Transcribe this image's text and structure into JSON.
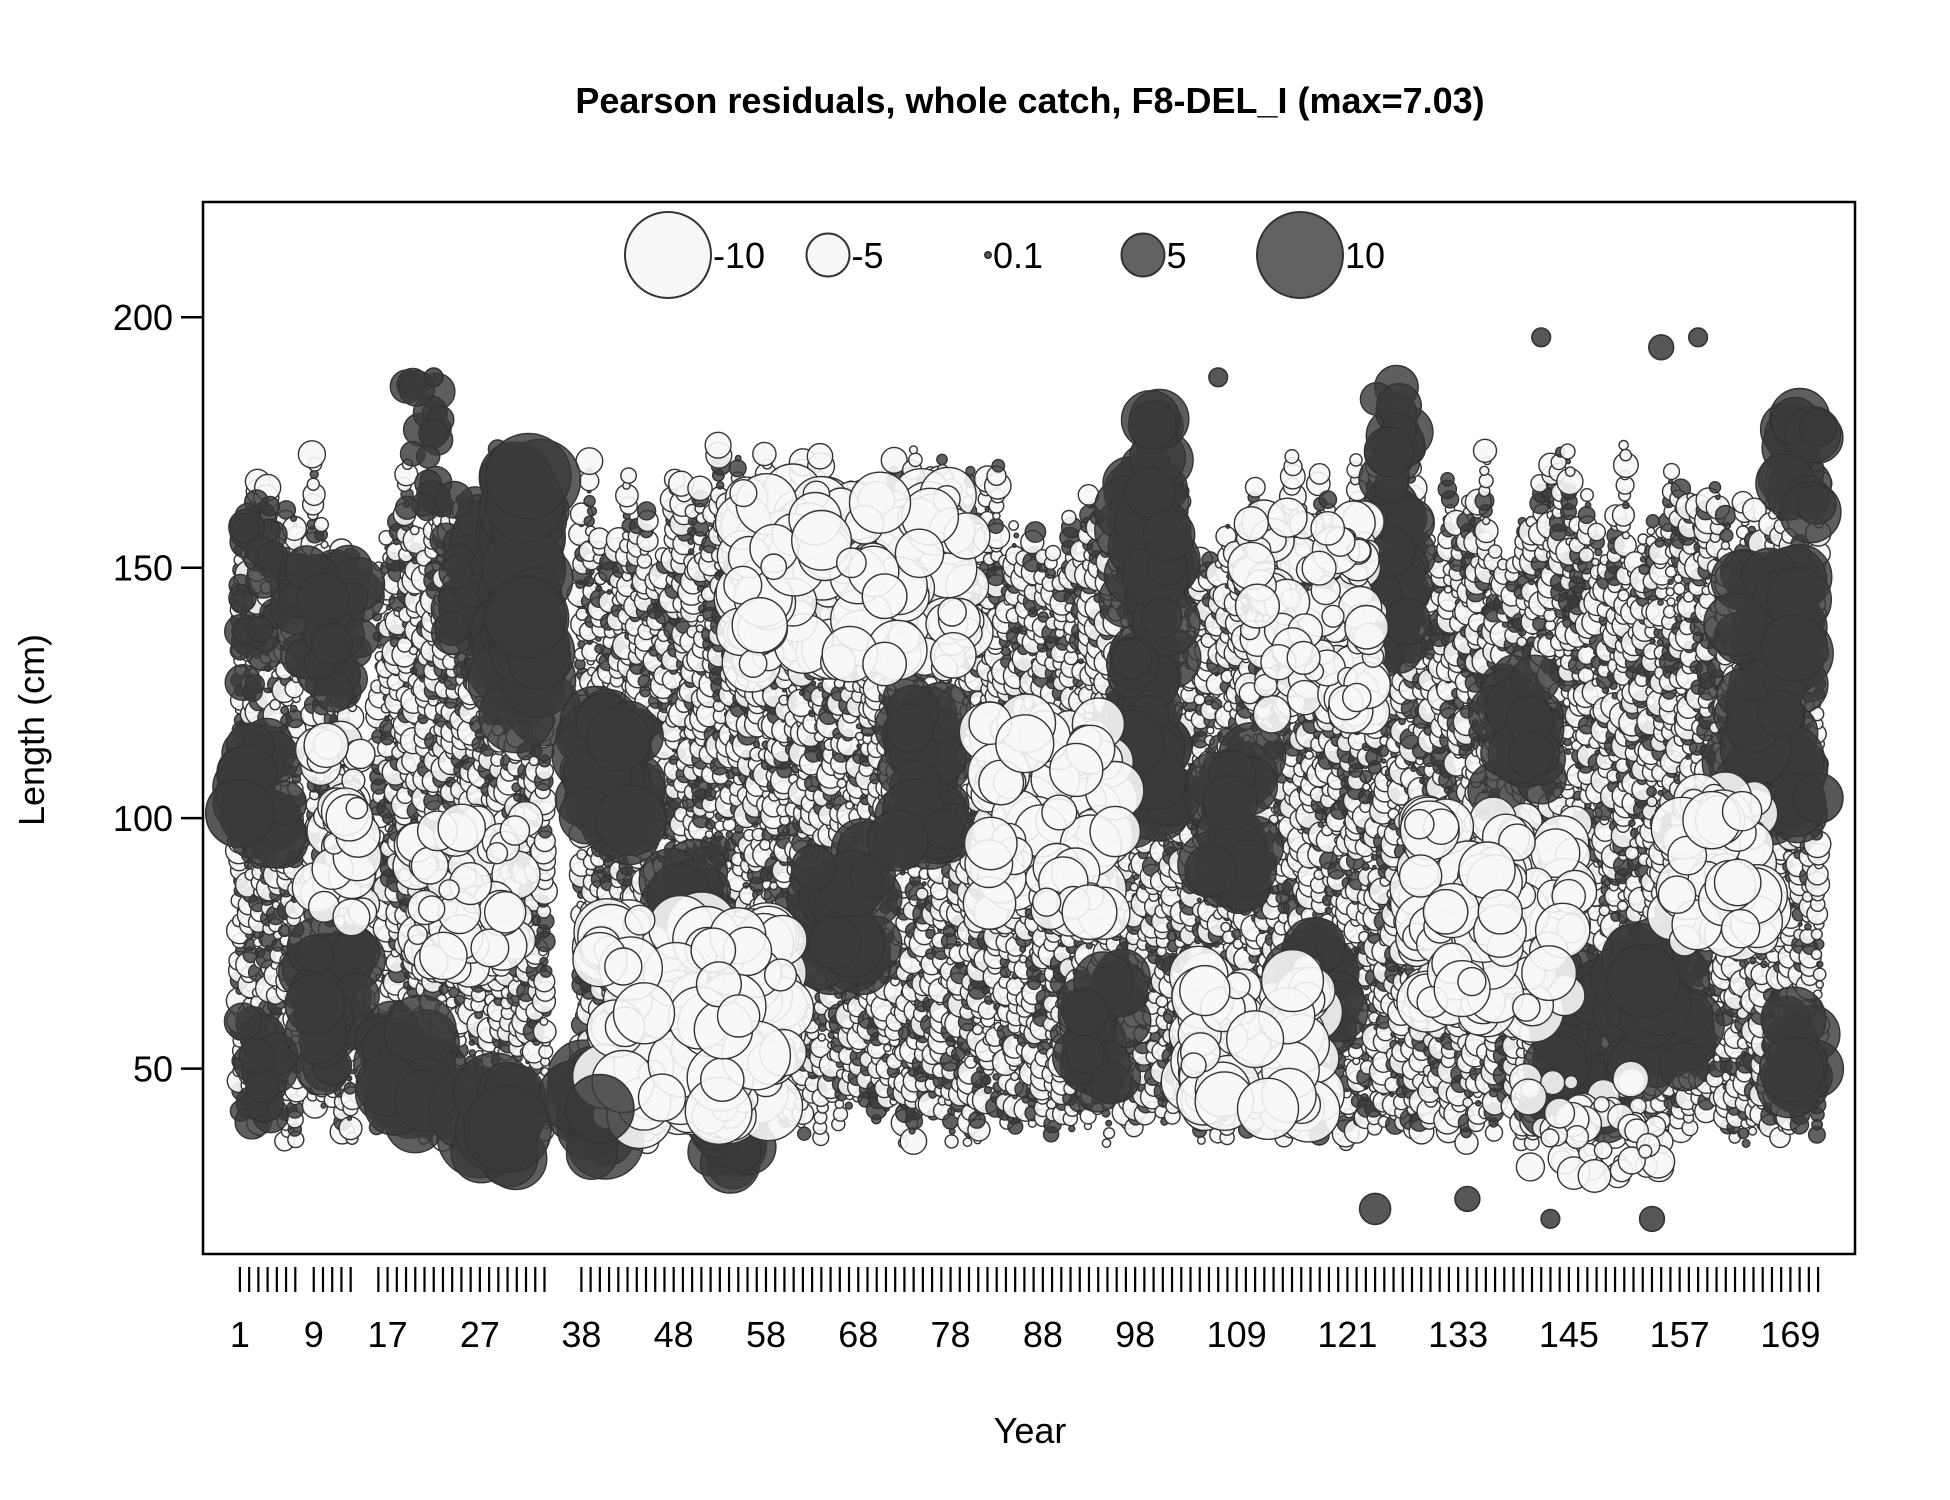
{
  "chart_data": {
    "type": "scatter",
    "title": "Pearson residuals, whole catch, F8-DEL_I (max=7.03)",
    "xlabel": "Year",
    "ylabel": "Length (cm)",
    "xlim": [
      -3,
      176
    ],
    "ylim": [
      13,
      223
    ],
    "x_tick_labels": [
      "1",
      "9",
      "17",
      "27",
      "38",
      "48",
      "58",
      "68",
      "78",
      "88",
      "98",
      "109",
      "121",
      "133",
      "145",
      "157",
      "169"
    ],
    "y_ticks": [
      50,
      100,
      150,
      200
    ],
    "y_tick_labels": [
      "50",
      "100",
      "150",
      "200"
    ],
    "year_groups": [
      [
        1,
        7
      ],
      [
        9,
        13
      ],
      [
        16,
        34
      ],
      [
        38,
        172
      ]
    ],
    "legend": {
      "placement": "top-center",
      "values": [
        -10,
        -5,
        0.1,
        5,
        10
      ],
      "labels": [
        "-10",
        "-5",
        "0.1",
        "5",
        "10"
      ]
    },
    "colors": {
      "positive": "#3a3a3a",
      "negative": "#f7f7f7",
      "outline": "#333333"
    },
    "bubble_groups": [
      {
        "x": [
          1,
          6
        ],
        "y": [
          95,
          115
        ],
        "r": [
          3.5,
          5.5
        ],
        "sign": "positive"
      },
      {
        "x": [
          1,
          5
        ],
        "y": [
          38,
          60
        ],
        "r": [
          2.5,
          4
        ],
        "sign": "positive"
      },
      {
        "x": [
          1,
          5
        ],
        "y": [
          125,
          165
        ],
        "r": [
          1.5,
          3
        ],
        "sign": "positive"
      },
      {
        "x": [
          8,
          14
        ],
        "y": [
          50,
          75
        ],
        "r": [
          3,
          5
        ],
        "sign": "positive"
      },
      {
        "x": [
          7,
          14
        ],
        "y": [
          125,
          150
        ],
        "r": [
          2.5,
          4.5
        ],
        "sign": "positive"
      },
      {
        "x": [
          16,
          22
        ],
        "y": [
          38,
          60
        ],
        "r": [
          3.5,
          6
        ],
        "sign": "positive"
      },
      {
        "x": [
          19,
          23
        ],
        "y": [
          160,
          188
        ],
        "r": [
          1.5,
          3
        ],
        "sign": "positive"
      },
      {
        "x": [
          23,
          28
        ],
        "y": [
          135,
          165
        ],
        "r": [
          2.5,
          4
        ],
        "sign": "positive"
      },
      {
        "x": [
          26,
          31
        ],
        "y": [
          32,
          48
        ],
        "r": [
          4,
          7
        ],
        "sign": "positive"
      },
      {
        "x": [
          30,
          34
        ],
        "y": [
          120,
          170
        ],
        "r": [
          4,
          7
        ],
        "sign": "positive"
      },
      {
        "x": [
          38,
          44
        ],
        "y": [
          95,
          120
        ],
        "r": [
          4,
          6
        ],
        "sign": "positive"
      },
      {
        "x": [
          37,
          41
        ],
        "y": [
          32,
          50
        ],
        "r": [
          4,
          6.5
        ],
        "sign": "positive"
      },
      {
        "x": [
          47,
          53
        ],
        "y": [
          65,
          90
        ],
        "r": [
          3.5,
          5.5
        ],
        "sign": "positive"
      },
      {
        "x": [
          52,
          57
        ],
        "y": [
          30,
          50
        ],
        "r": [
          3,
          5
        ],
        "sign": "positive"
      },
      {
        "x": [
          63,
          70
        ],
        "y": [
          70,
          95
        ],
        "r": [
          3.5,
          5.5
        ],
        "sign": "positive"
      },
      {
        "x": [
          72,
          78
        ],
        "y": [
          95,
          125
        ],
        "r": [
          3,
          5
        ],
        "sign": "positive"
      },
      {
        "x": [
          92,
          97
        ],
        "y": [
          45,
          70
        ],
        "r": [
          3,
          5
        ],
        "sign": "positive"
      },
      {
        "x": [
          97,
          102
        ],
        "y": [
          100,
          180
        ],
        "r": [
          3,
          5.5
        ],
        "sign": "positive"
      },
      {
        "x": [
          106,
          111
        ],
        "y": [
          85,
          115
        ],
        "r": [
          3.5,
          5.5
        ],
        "sign": "positive"
      },
      {
        "x": [
          115,
          120
        ],
        "y": [
          55,
          75
        ],
        "r": [
          3,
          5
        ],
        "sign": "positive"
      },
      {
        "x": [
          124,
          128
        ],
        "y": [
          130,
          190
        ],
        "r": [
          2.5,
          4.5
        ],
        "sign": "positive"
      },
      {
        "x": [
          137,
          142
        ],
        "y": [
          105,
          130
        ],
        "r": [
          3,
          5
        ],
        "sign": "positive"
      },
      {
        "x": [
          143,
          149
        ],
        "y": [
          40,
          70
        ],
        "r": [
          3,
          5.5
        ],
        "sign": "positive"
      },
      {
        "x": [
          151,
          158
        ],
        "y": [
          50,
          75
        ],
        "r": [
          3.5,
          6
        ],
        "sign": "positive"
      },
      {
        "x": [
          163,
          170
        ],
        "y": [
          100,
          150
        ],
        "r": [
          3.5,
          6
        ],
        "sign": "positive"
      },
      {
        "x": [
          168,
          172
        ],
        "y": [
          45,
          60
        ],
        "r": [
          3.5,
          6
        ],
        "sign": "positive"
      },
      {
        "x": [
          168,
          172
        ],
        "y": [
          160,
          180
        ],
        "r": [
          3,
          5
        ],
        "sign": "positive"
      },
      {
        "x": [
          40,
          60
        ],
        "y": [
          40,
          80
        ],
        "r": [
          2,
          6
        ],
        "sign": "negative"
      },
      {
        "x": [
          55,
          80
        ],
        "y": [
          130,
          165
        ],
        "r": [
          2,
          5
        ],
        "sign": "negative"
      },
      {
        "x": [
          82,
          96
        ],
        "y": [
          80,
          120
        ],
        "r": [
          2,
          5
        ],
        "sign": "negative"
      },
      {
        "x": [
          104,
          118
        ],
        "y": [
          40,
          70
        ],
        "r": [
          2,
          5
        ],
        "sign": "negative"
      },
      {
        "x": [
          110,
          124
        ],
        "y": [
          120,
          160
        ],
        "r": [
          1.5,
          4
        ],
        "sign": "negative"
      },
      {
        "x": [
          128,
          146
        ],
        "y": [
          60,
          100
        ],
        "r": [
          2,
          5
        ],
        "sign": "negative"
      },
      {
        "x": [
          140,
          156
        ],
        "y": [
          28,
          48
        ],
        "r": [
          1,
          3
        ],
        "sign": "negative"
      },
      {
        "x": [
          156,
          166
        ],
        "y": [
          75,
          105
        ],
        "r": [
          2,
          5
        ],
        "sign": "negative"
      },
      {
        "x": [
          9,
          15
        ],
        "y": [
          80,
          115
        ],
        "r": [
          1.5,
          4
        ],
        "sign": "negative"
      },
      {
        "x": [
          20,
          32
        ],
        "y": [
          70,
          100
        ],
        "r": [
          1.5,
          4
        ],
        "sign": "negative"
      }
    ],
    "extreme_points": [
      {
        "x": 30,
        "y": 38,
        "v": 7.03
      },
      {
        "x": 32,
        "y": 140,
        "v": 6.5
      },
      {
        "x": 1,
        "y": 101,
        "v": 5.5
      },
      {
        "x": 40,
        "y": 42,
        "v": 5.5
      },
      {
        "x": 124,
        "y": 22,
        "v": 2.5
      },
      {
        "x": 154,
        "y": 20,
        "v": 2
      },
      {
        "x": 143,
        "y": 20,
        "v": 1.5
      },
      {
        "x": 134,
        "y": 24,
        "v": 2
      },
      {
        "x": 155,
        "y": 194,
        "v": 2
      },
      {
        "x": 142,
        "y": 196,
        "v": 1.5
      },
      {
        "x": 159,
        "y": 196,
        "v": 1.5
      },
      {
        "x": 22,
        "y": 188,
        "v": 1.5
      },
      {
        "x": 107,
        "y": 188,
        "v": 1.5
      },
      {
        "x": 172,
        "y": 178,
        "v": 3
      },
      {
        "x": 172,
        "y": 104,
        "v": 4
      }
    ]
  }
}
